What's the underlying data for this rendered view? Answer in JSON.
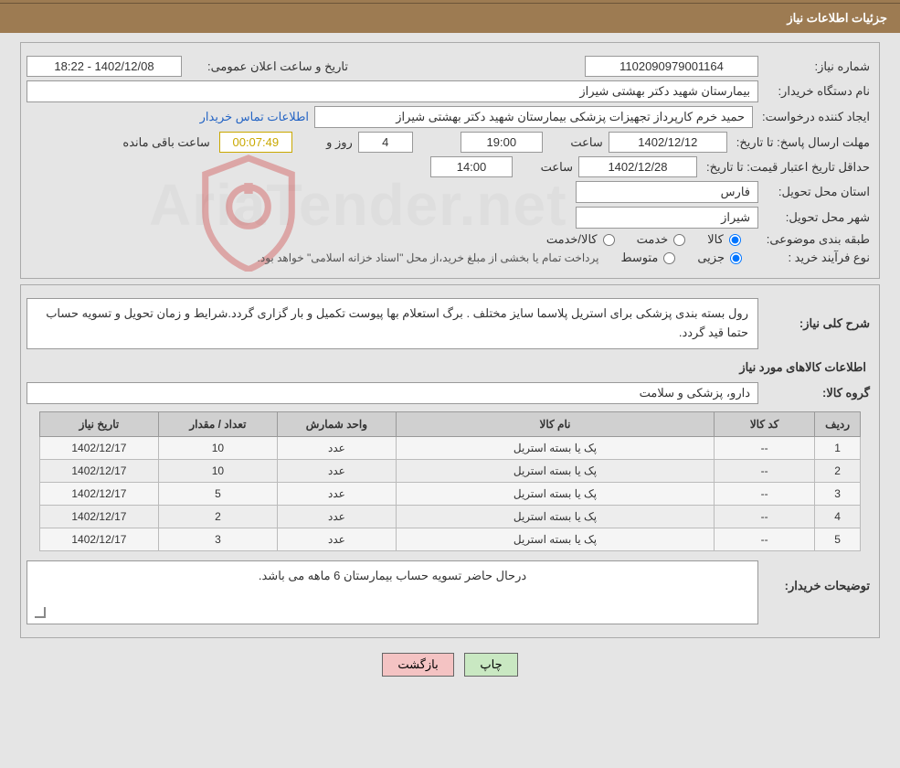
{
  "header": {
    "title": "جزئیات اطلاعات نیاز"
  },
  "fields": {
    "reqno_label": "شماره نیاز:",
    "reqno": "1102090979001164",
    "announce_label": "تاریخ و ساعت اعلان عمومی:",
    "announce": "1402/12/08 - 18:22",
    "org_label": "نام دستگاه خریدار:",
    "org": "بیمارستان شهید دکتر بهشتی شیراز",
    "creator_label": "ایجاد کننده درخواست:",
    "creator": "حمید خرم کارپرداز تجهیزات پزشکی بیمارستان شهید دکتر بهشتی شیراز",
    "contact_link": "اطلاعات تماس خریدار",
    "deadline_label": "مهلت ارسال پاسخ: تا تاریخ:",
    "deadline_date": "1402/12/12",
    "time_word": "ساعت",
    "deadline_time": "19:00",
    "days_word": "روز و",
    "days_remain": "4",
    "countdown": "00:07:49",
    "remain_word": "ساعت باقی مانده",
    "minvalid_label": "حداقل تاریخ اعتبار قیمت: تا تاریخ:",
    "minvalid_date": "1402/12/28",
    "minvalid_time": "14:00",
    "province_label": "استان محل تحویل:",
    "province": "فارس",
    "city_label": "شهر محل تحویل:",
    "city": "شیراز",
    "cat_label": "طبقه بندی موضوعی:",
    "cat_kala": "کالا",
    "cat_khadamat": "خدمت",
    "cat_both": "کالا/خدمت",
    "proc_label": "نوع فرآیند خرید :",
    "proc_jozi": "جزیی",
    "proc_motavaset": "متوسط",
    "proc_note": "پرداخت تمام یا بخشی از مبلغ خرید،از محل \"اسناد خزانه اسلامی\" خواهد بود."
  },
  "need": {
    "desc_label": "شرح کلی نیاز:",
    "desc": "رول بسته بندی پزشکی برای استریل  پلاسما سایز مختلف . برگ استعلام بها پیوست تکمیل و بار گزاری گردد.شرایط و زمان تحویل و تسویه حساب حتما قید گردد.",
    "items_title": "اطلاعات کالاهای مورد نیاز",
    "group_label": "گروه کالا:",
    "group": "دارو، پزشکی و سلامت",
    "buyer_desc_label": "توضیحات خریدار:",
    "buyer_desc": "درحال حاضر تسویه حساب بیمارستان 6 ماهه می باشد."
  },
  "table": {
    "headers": {
      "row": "ردیف",
      "code": "کد کالا",
      "name": "نام کالا",
      "unit": "واحد شمارش",
      "qty": "تعداد / مقدار",
      "date": "تاریخ نیاز"
    },
    "col_widths": {
      "row": "50px",
      "code": "110px",
      "name": "auto",
      "unit": "130px",
      "qty": "130px",
      "date": "130px"
    },
    "rows": [
      {
        "n": "1",
        "code": "--",
        "name": "پک یا بسته استریل",
        "unit": "عدد",
        "qty": "10",
        "date": "1402/12/17"
      },
      {
        "n": "2",
        "code": "--",
        "name": "پک یا بسته استریل",
        "unit": "عدد",
        "qty": "10",
        "date": "1402/12/17"
      },
      {
        "n": "3",
        "code": "--",
        "name": "پک یا بسته استریل",
        "unit": "عدد",
        "qty": "5",
        "date": "1402/12/17"
      },
      {
        "n": "4",
        "code": "--",
        "name": "پک یا بسته استریل",
        "unit": "عدد",
        "qty": "2",
        "date": "1402/12/17"
      },
      {
        "n": "5",
        "code": "--",
        "name": "پک یا بسته استریل",
        "unit": "عدد",
        "qty": "3",
        "date": "1402/12/17"
      }
    ]
  },
  "buttons": {
    "print": "چاپ",
    "back": "بازگشت"
  },
  "watermark": {
    "text": "AriaTender.net",
    "shield_stroke": "#c33",
    "shield_fill": "none"
  },
  "colors": {
    "header_bg": "#9d7b52",
    "body_bg": "#e5e5e5",
    "link": "#2464c4",
    "countdown": "#c9a800",
    "btn_print": "#c9e8c2",
    "btn_back": "#f4c3c3"
  },
  "radio_state": {
    "cat_selected": "kala",
    "proc_selected": "jozi"
  }
}
